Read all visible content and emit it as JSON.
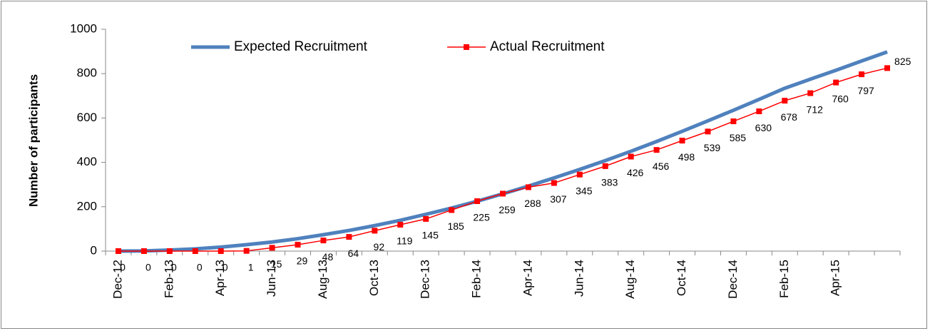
{
  "chart_data": {
    "type": "line",
    "y_label": "Number of participants",
    "categories": [
      "Dec-12",
      null,
      "Feb-13",
      null,
      "Apr-13",
      null,
      "Jun-13",
      null,
      "Aug-13",
      null,
      "Oct-13",
      null,
      "Dec-13",
      null,
      "Feb-14",
      null,
      "Apr-14",
      null,
      "Jun-14",
      null,
      "Aug-14",
      null,
      "Oct-14",
      null,
      "Dec-14",
      null,
      "Feb-15",
      null,
      "Apr-15",
      null,
      null
    ],
    "series": [
      {
        "name": "Expected Recruitment",
        "color": "#4f81bd",
        "values": [
          0,
          1,
          5,
          10,
          18,
          29,
          41,
          56,
          74,
          93,
          115,
          139,
          166,
          194,
          225,
          258,
          293,
          330,
          368,
          408,
          450,
          494,
          540,
          587,
          635,
          684,
          734,
          775,
          815,
          857,
          898
        ]
      },
      {
        "name": "Actual Recruitment",
        "color": "#ff0000",
        "values": [
          0,
          0,
          0,
          0,
          0,
          1,
          15,
          29,
          48,
          64,
          92,
          119,
          145,
          185,
          225,
          259,
          288,
          307,
          345,
          383,
          426,
          456,
          498,
          539,
          585,
          630,
          678,
          712,
          760,
          797,
          825
        ],
        "data_labels": true
      }
    ],
    "ylim": [
      0,
      1000
    ],
    "yticks": [
      0,
      200,
      400,
      600,
      800,
      1000
    ]
  }
}
